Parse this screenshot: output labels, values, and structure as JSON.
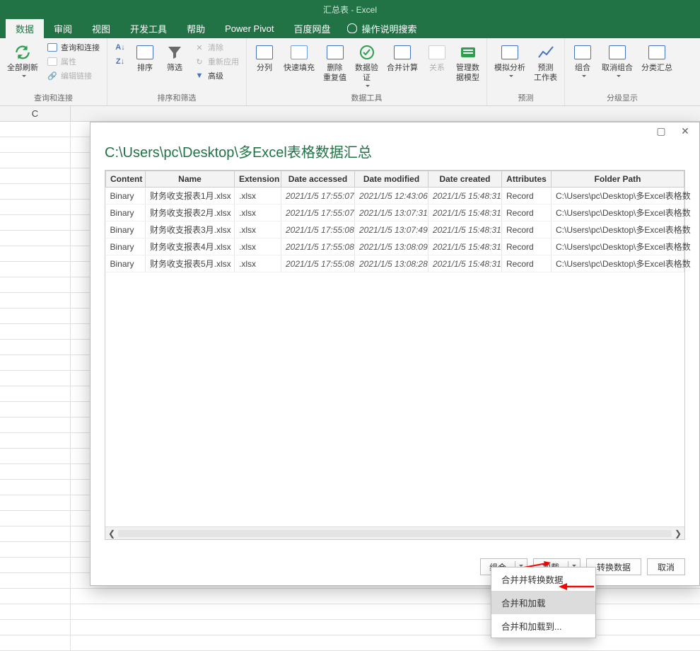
{
  "colors": {
    "brand": "#217346",
    "ribbon_bg": "#f3f3f3",
    "border": "#d4d4d4",
    "arrow": "#ff0000"
  },
  "titlebar": {
    "title": "汇总表  -  Excel"
  },
  "tabs": {
    "items": [
      "数据",
      "审阅",
      "视图",
      "开发工具",
      "帮助",
      "Power Pivot",
      "百度网盘"
    ],
    "active_index": 0,
    "tell_me": "操作说明搜索"
  },
  "ribbon": {
    "groups": [
      {
        "label": "查询和连接",
        "large": [
          {
            "label": "全部刷新",
            "icon": "refresh-all-icon"
          }
        ],
        "small": [
          {
            "label": "查询和连接",
            "icon": "queries-icon"
          },
          {
            "label": "属性",
            "icon": "properties-icon",
            "disabled": true
          },
          {
            "label": "编辑链接",
            "icon": "edit-links-icon",
            "disabled": true
          }
        ]
      },
      {
        "label": "排序和筛选",
        "large": [
          {
            "label": "",
            "icon": "sort-az-icon"
          },
          {
            "label": "排序",
            "icon": "sort-dialog-icon"
          },
          {
            "label": "筛选",
            "icon": "filter-icon"
          }
        ],
        "small": [
          {
            "label": "清除",
            "icon": "clear-icon",
            "disabled": true
          },
          {
            "label": "重新应用",
            "icon": "reapply-icon",
            "disabled": true
          },
          {
            "label": "高级",
            "icon": "advanced-icon"
          }
        ]
      },
      {
        "label": "数据工具",
        "large": [
          {
            "label": "分列",
            "icon": "text-to-columns-icon"
          },
          {
            "label": "快速填充",
            "icon": "flash-fill-icon"
          },
          {
            "label": "删除\n重复值",
            "icon": "remove-duplicates-icon"
          },
          {
            "label": "数据验\n证",
            "icon": "data-validation-icon"
          },
          {
            "label": "合并计算",
            "icon": "consolidate-icon"
          },
          {
            "label": "关系",
            "icon": "relationships-icon",
            "disabled": true
          },
          {
            "label": "管理数\n据模型",
            "icon": "data-model-icon"
          }
        ]
      },
      {
        "label": "预测",
        "large": [
          {
            "label": "模拟分析",
            "icon": "whatif-icon"
          },
          {
            "label": "预测\n工作表",
            "icon": "forecast-icon"
          }
        ]
      },
      {
        "label": "分级显示",
        "large": [
          {
            "label": "组合",
            "icon": "group-icon"
          },
          {
            "label": "取消组合",
            "icon": "ungroup-icon"
          },
          {
            "label": "分类汇总",
            "icon": "subtotal-icon"
          }
        ]
      }
    ]
  },
  "sheet": {
    "visible_col": "C"
  },
  "dialog": {
    "title": "C:\\Users\\pc\\Desktop\\多Excel表格数据汇总",
    "columns": [
      "Content",
      "Name",
      "Extension",
      "Date accessed",
      "Date modified",
      "Date created",
      "Attributes",
      "Folder Path"
    ],
    "rows": [
      [
        "Binary",
        "财务收支报表1月.xlsx",
        ".xlsx",
        "2021/1/5 17:55:07",
        "2021/1/5 12:43:06",
        "2021/1/5 15:48:31",
        "Record",
        "C:\\Users\\pc\\Desktop\\多Excel表格数"
      ],
      [
        "Binary",
        "财务收支报表2月.xlsx",
        ".xlsx",
        "2021/1/5 17:55:07",
        "2021/1/5 13:07:31",
        "2021/1/5 15:48:31",
        "Record",
        "C:\\Users\\pc\\Desktop\\多Excel表格数"
      ],
      [
        "Binary",
        "财务收支报表3月.xlsx",
        ".xlsx",
        "2021/1/5 17:55:08",
        "2021/1/5 13:07:49",
        "2021/1/5 15:48:31",
        "Record",
        "C:\\Users\\pc\\Desktop\\多Excel表格数"
      ],
      [
        "Binary",
        "财务收支报表4月.xlsx",
        ".xlsx",
        "2021/1/5 17:55:08",
        "2021/1/5 13:08:09",
        "2021/1/5 15:48:31",
        "Record",
        "C:\\Users\\pc\\Desktop\\多Excel表格数"
      ],
      [
        "Binary",
        "财务收支报表5月.xlsx",
        ".xlsx",
        "2021/1/5 17:55:08",
        "2021/1/5 13:08:28",
        "2021/1/5 15:48:31",
        "Record",
        "C:\\Users\\pc\\Desktop\\多Excel表格数"
      ]
    ],
    "footer": {
      "combine": "组合",
      "load": "加载",
      "transform": "转换数据",
      "cancel": "取消"
    },
    "combine_menu": {
      "items": [
        "合并并转换数据",
        "合并和加载",
        "合并和加载到..."
      ],
      "hover_index": 1
    }
  }
}
